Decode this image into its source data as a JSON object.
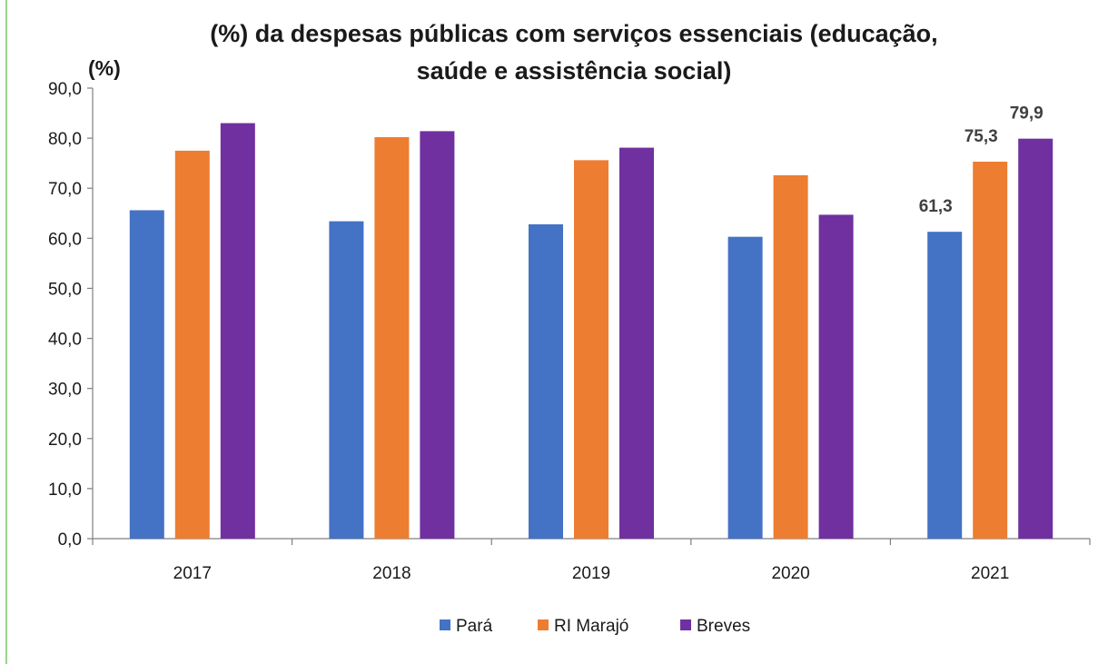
{
  "chart_data": {
    "type": "bar",
    "title_lines": [
      "(%) da despesas públicas com serviços essenciais (educação,",
      "saúde e assistência social)"
    ],
    "ylabel": "(%)",
    "ylim": [
      0,
      90
    ],
    "yticks": [
      "0,0",
      "10,0",
      "20,0",
      "30,0",
      "40,0",
      "50,0",
      "60,0",
      "70,0",
      "80,0",
      "90,0"
    ],
    "ytick_values": [
      0,
      10,
      20,
      30,
      40,
      50,
      60,
      70,
      80,
      90
    ],
    "categories": [
      "2017",
      "2018",
      "2019",
      "2020",
      "2021"
    ],
    "series": [
      {
        "name": "Pará",
        "color": "#4472c4",
        "values": [
          65.6,
          63.4,
          62.8,
          60.3,
          61.3
        ]
      },
      {
        "name": "RI Marajó",
        "color": "#ed7d31",
        "values": [
          77.5,
          80.2,
          75.6,
          72.6,
          75.3
        ]
      },
      {
        "name": "Breves",
        "color": "#7030a0",
        "values": [
          83.0,
          81.4,
          78.1,
          64.7,
          79.9
        ]
      }
    ],
    "data_labels": [
      {
        "series": 0,
        "category": 4,
        "text": "61,3"
      },
      {
        "series": 1,
        "category": 4,
        "text": "75,3"
      },
      {
        "series": 2,
        "category": 4,
        "text": "79,9"
      }
    ],
    "legend_position": "bottom",
    "grid": false
  }
}
